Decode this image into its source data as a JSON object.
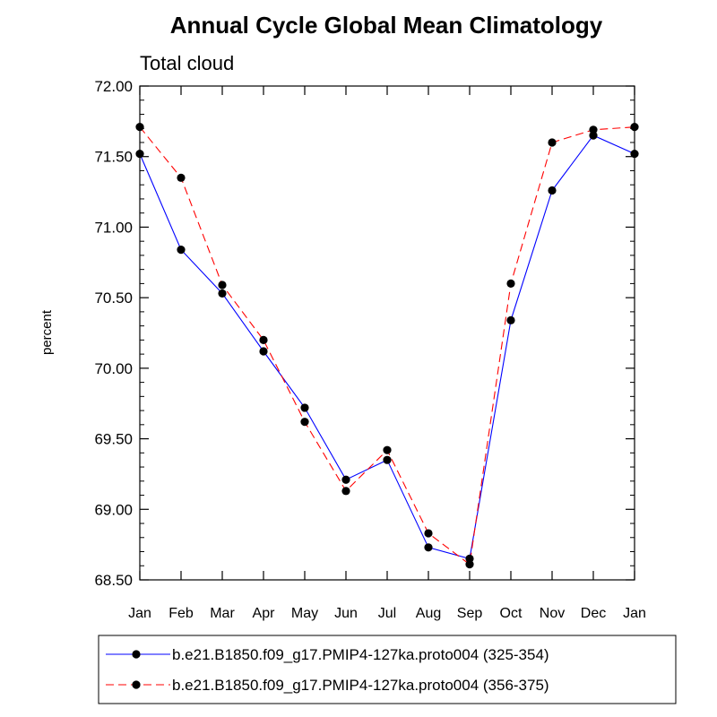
{
  "chart_data": {
    "type": "line",
    "title": "Annual Cycle Global Mean Climatology",
    "subtitle": "Total cloud",
    "xlabel": "",
    "ylabel": "percent",
    "categories": [
      "Jan",
      "Feb",
      "Mar",
      "Apr",
      "May",
      "Jun",
      "Jul",
      "Aug",
      "Sep",
      "Oct",
      "Nov",
      "Dec",
      "Jan"
    ],
    "ylim": [
      68.5,
      72.0
    ],
    "yticks": [
      "68.50",
      "69.00",
      "69.50",
      "70.00",
      "70.50",
      "71.00",
      "71.50",
      "72.00"
    ],
    "grid": false,
    "legend_position": "bottom",
    "series": [
      {
        "name": "b.e21.B1850.f09_g17.PMIP4-127ka.proto004 (325-354)",
        "color": "#0000ff",
        "dash": "solid",
        "values": [
          71.52,
          70.84,
          70.53,
          70.12,
          69.72,
          69.21,
          69.35,
          68.73,
          68.65,
          70.34,
          71.26,
          71.65,
          71.52
        ]
      },
      {
        "name": "b.e21.B1850.f09_g17.PMIP4-127ka.proto004 (356-375)",
        "color": "#ff0000",
        "dash": "dashed",
        "values": [
          71.71,
          71.35,
          70.59,
          70.2,
          69.62,
          69.13,
          69.42,
          68.83,
          68.61,
          70.6,
          71.6,
          71.69,
          71.71
        ]
      }
    ]
  }
}
